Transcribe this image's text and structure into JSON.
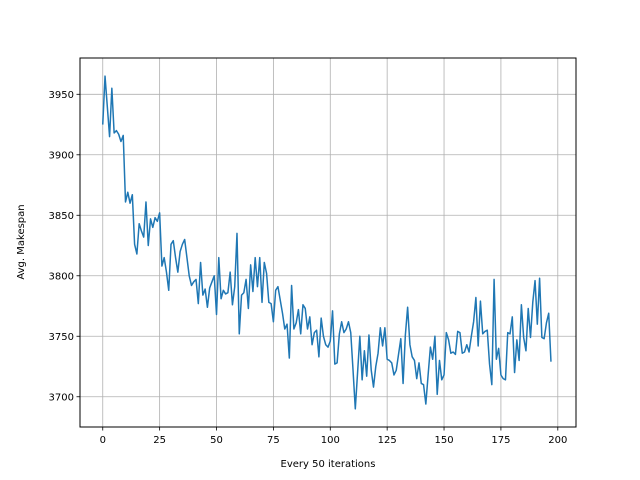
{
  "chart_data": {
    "type": "line",
    "xlabel": "Every 50 iterations",
    "ylabel": "Avg. Makespan",
    "xlim": [
      -10,
      208
    ],
    "ylim": [
      3675,
      3980
    ],
    "xticks": [
      0,
      25,
      50,
      75,
      100,
      125,
      150,
      175,
      200
    ],
    "yticks": [
      3700,
      3750,
      3800,
      3850,
      3900,
      3950
    ],
    "grid": true,
    "line_color": "#1f77b4",
    "series": [
      {
        "x": [
          0,
          1,
          2,
          3,
          4,
          5,
          6,
          7,
          8,
          9,
          10,
          11,
          12,
          13,
          14,
          15,
          16,
          17,
          18,
          19,
          20,
          21,
          22,
          23,
          24,
          25,
          26,
          27,
          28,
          29,
          30,
          31,
          32,
          33,
          34,
          35,
          36,
          37,
          38,
          39,
          40,
          41,
          42,
          43,
          44,
          45,
          46,
          47,
          48,
          49,
          50,
          51,
          52,
          53,
          54,
          55,
          56,
          57,
          58,
          59,
          60,
          61,
          62,
          63,
          64,
          65,
          66,
          67,
          68,
          69,
          70,
          71,
          72,
          73,
          74,
          75,
          76,
          77,
          78,
          79,
          80,
          81,
          82,
          83,
          84,
          85,
          86,
          87,
          88,
          89,
          90,
          91,
          92,
          93,
          94,
          95,
          96,
          97,
          98,
          99,
          100,
          101,
          102,
          103,
          104,
          105,
          106,
          107,
          108,
          109,
          110,
          111,
          112,
          113,
          114,
          115,
          116,
          117,
          118,
          119,
          120,
          121,
          122,
          123,
          124,
          125,
          126,
          127,
          128,
          129,
          130,
          131,
          132,
          133,
          134,
          135,
          136,
          137,
          138,
          139,
          140,
          141,
          142,
          143,
          144,
          145,
          146,
          147,
          148,
          149,
          150,
          151,
          152,
          153,
          154,
          155,
          156,
          157,
          158,
          159,
          160,
          161,
          162,
          163,
          164,
          165,
          166,
          167,
          168,
          169,
          170,
          171,
          172,
          173,
          174,
          175,
          176,
          177,
          178,
          179,
          180,
          181,
          182,
          183,
          184,
          185,
          186,
          187,
          188,
          189,
          190,
          191,
          192,
          193,
          194,
          195,
          196,
          197
        ],
        "values": [
          3925,
          3965,
          3940,
          3915,
          3955,
          3918,
          3920,
          3917,
          3911,
          3916,
          3861,
          3869,
          3860,
          3867,
          3826,
          3818,
          3843,
          3837,
          3832,
          3861,
          3825,
          3847,
          3840,
          3848,
          3845,
          3852,
          3808,
          3815,
          3803,
          3788,
          3826,
          3829,
          3815,
          3803,
          3820,
          3826,
          3830,
          3815,
          3800,
          3792,
          3795,
          3797,
          3777,
          3811,
          3784,
          3789,
          3774,
          3790,
          3795,
          3800,
          3768,
          3815,
          3781,
          3788,
          3785,
          3786,
          3803,
          3776,
          3791,
          3835,
          3752,
          3784,
          3786,
          3797,
          3773,
          3809,
          3787,
          3815,
          3791,
          3815,
          3778,
          3811,
          3802,
          3778,
          3777,
          3762,
          3788,
          3791,
          3780,
          3769,
          3756,
          3760,
          3732,
          3792,
          3756,
          3761,
          3772,
          3752,
          3776,
          3773,
          3756,
          3766,
          3743,
          3753,
          3755,
          3733,
          3765,
          3750,
          3743,
          3741,
          3746,
          3771,
          3727,
          3728,
          3752,
          3762,
          3753,
          3756,
          3762,
          3753,
          3722,
          3690,
          3720,
          3750,
          3714,
          3738,
          3717,
          3751,
          3722,
          3708,
          3725,
          3736,
          3757,
          3742,
          3757,
          3731,
          3730,
          3728,
          3718,
          3722,
          3735,
          3748,
          3711,
          3751,
          3774,
          3743,
          3733,
          3730,
          3715,
          3728,
          3711,
          3710,
          3694,
          3718,
          3741,
          3731,
          3750,
          3702,
          3730,
          3714,
          3718,
          3753,
          3747,
          3736,
          3737,
          3735,
          3754,
          3753,
          3736,
          3737,
          3743,
          3737,
          3750,
          3762,
          3782,
          3742,
          3779,
          3752,
          3754,
          3755,
          3727,
          3710,
          3797,
          3731,
          3740,
          3718,
          3715,
          3714,
          3753,
          3752,
          3766,
          3720,
          3747,
          3730,
          3776,
          3749,
          3738,
          3773,
          3749,
          3778,
          3796,
          3760,
          3798,
          3749,
          3748,
          3761,
          3769,
          3729
        ]
      }
    ]
  }
}
